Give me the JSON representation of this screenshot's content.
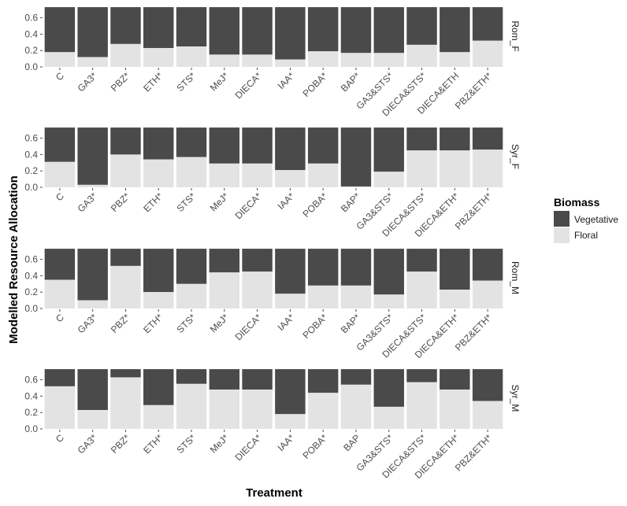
{
  "chart_data": {
    "type": "bar",
    "stacked": true,
    "xlabel": "Treatment",
    "ylabel": "Modelled Resource Allocation",
    "ylim": [
      0,
      0.75
    ],
    "yticks": [
      "0.0",
      "0.2",
      "0.4",
      "0.6"
    ],
    "ytick_values": [
      0,
      0.2,
      0.4,
      0.6
    ],
    "categories": [
      "C",
      "GA3",
      "PBZ",
      "ETH",
      "STS",
      "MeJ",
      "DIECA",
      "IAA",
      "POBA",
      "BAP",
      "GA3&STS",
      "DIECA&STS",
      "DIECA&ETH",
      "PBZ&ETH"
    ],
    "total": 0.73,
    "legend": {
      "title": "Biomass",
      "position": "right",
      "entries": [
        {
          "label": "Vegetative",
          "color": "#4a4a4a"
        },
        {
          "label": "Floral",
          "color": "#e3e3e3"
        }
      ]
    },
    "panels": [
      {
        "strip": "Rom_F",
        "tick_labels": [
          "C",
          "GA3*",
          "PBZ*",
          "ETH*",
          "STS*",
          "MeJ*",
          "DIECA*",
          "IAA*",
          "POBA*",
          "BAP*",
          "GA3&STS*",
          "DIECA&STS*",
          "DIECA&ETH",
          "PBZ&ETH*"
        ],
        "floral": [
          0.18,
          0.12,
          0.28,
          0.23,
          0.25,
          0.15,
          0.15,
          0.09,
          0.19,
          0.17,
          0.17,
          0.27,
          0.18,
          0.32
        ]
      },
      {
        "strip": "Syr_F",
        "tick_labels": [
          "C",
          "GA3*",
          "PBZ*",
          "ETH*",
          "STS*",
          "MeJ*",
          "DIECA*",
          "IAA*",
          "POBA*",
          "BAP*",
          "GA3&STS*",
          "DIECA&STS*",
          "DIECA&ETH*",
          "PBZ&ETH*"
        ],
        "floral": [
          0.31,
          0.03,
          0.4,
          0.34,
          0.37,
          0.29,
          0.29,
          0.21,
          0.29,
          0.01,
          0.19,
          0.45,
          0.45,
          0.46
        ]
      },
      {
        "strip": "Rom_M",
        "tick_labels": [
          "C",
          "GA3*",
          "PBZ*",
          "ETH*",
          "STS*",
          "MeJ*",
          "DIECA*",
          "IAA*",
          "POBA*",
          "BAP*",
          "GA3&STS*",
          "DIECA&STS*",
          "DIECA&ETH*",
          "PBZ&ETH*"
        ],
        "floral": [
          0.35,
          0.1,
          0.52,
          0.2,
          0.3,
          0.44,
          0.45,
          0.18,
          0.28,
          0.28,
          0.17,
          0.45,
          0.23,
          0.34
        ]
      },
      {
        "strip": "Syr_M",
        "tick_labels": [
          "C",
          "GA3*",
          "PBZ*",
          "ETH*",
          "STS*",
          "MeJ*",
          "DIECA*",
          "IAA*",
          "POBA*",
          "BAP",
          "GA3&STS*",
          "DIECA&STS*",
          "DIECA&ETH*",
          "PBZ&ETH*"
        ],
        "floral": [
          0.52,
          0.23,
          0.63,
          0.29,
          0.55,
          0.48,
          0.48,
          0.18,
          0.44,
          0.54,
          0.27,
          0.57,
          0.48,
          0.34
        ]
      }
    ]
  }
}
